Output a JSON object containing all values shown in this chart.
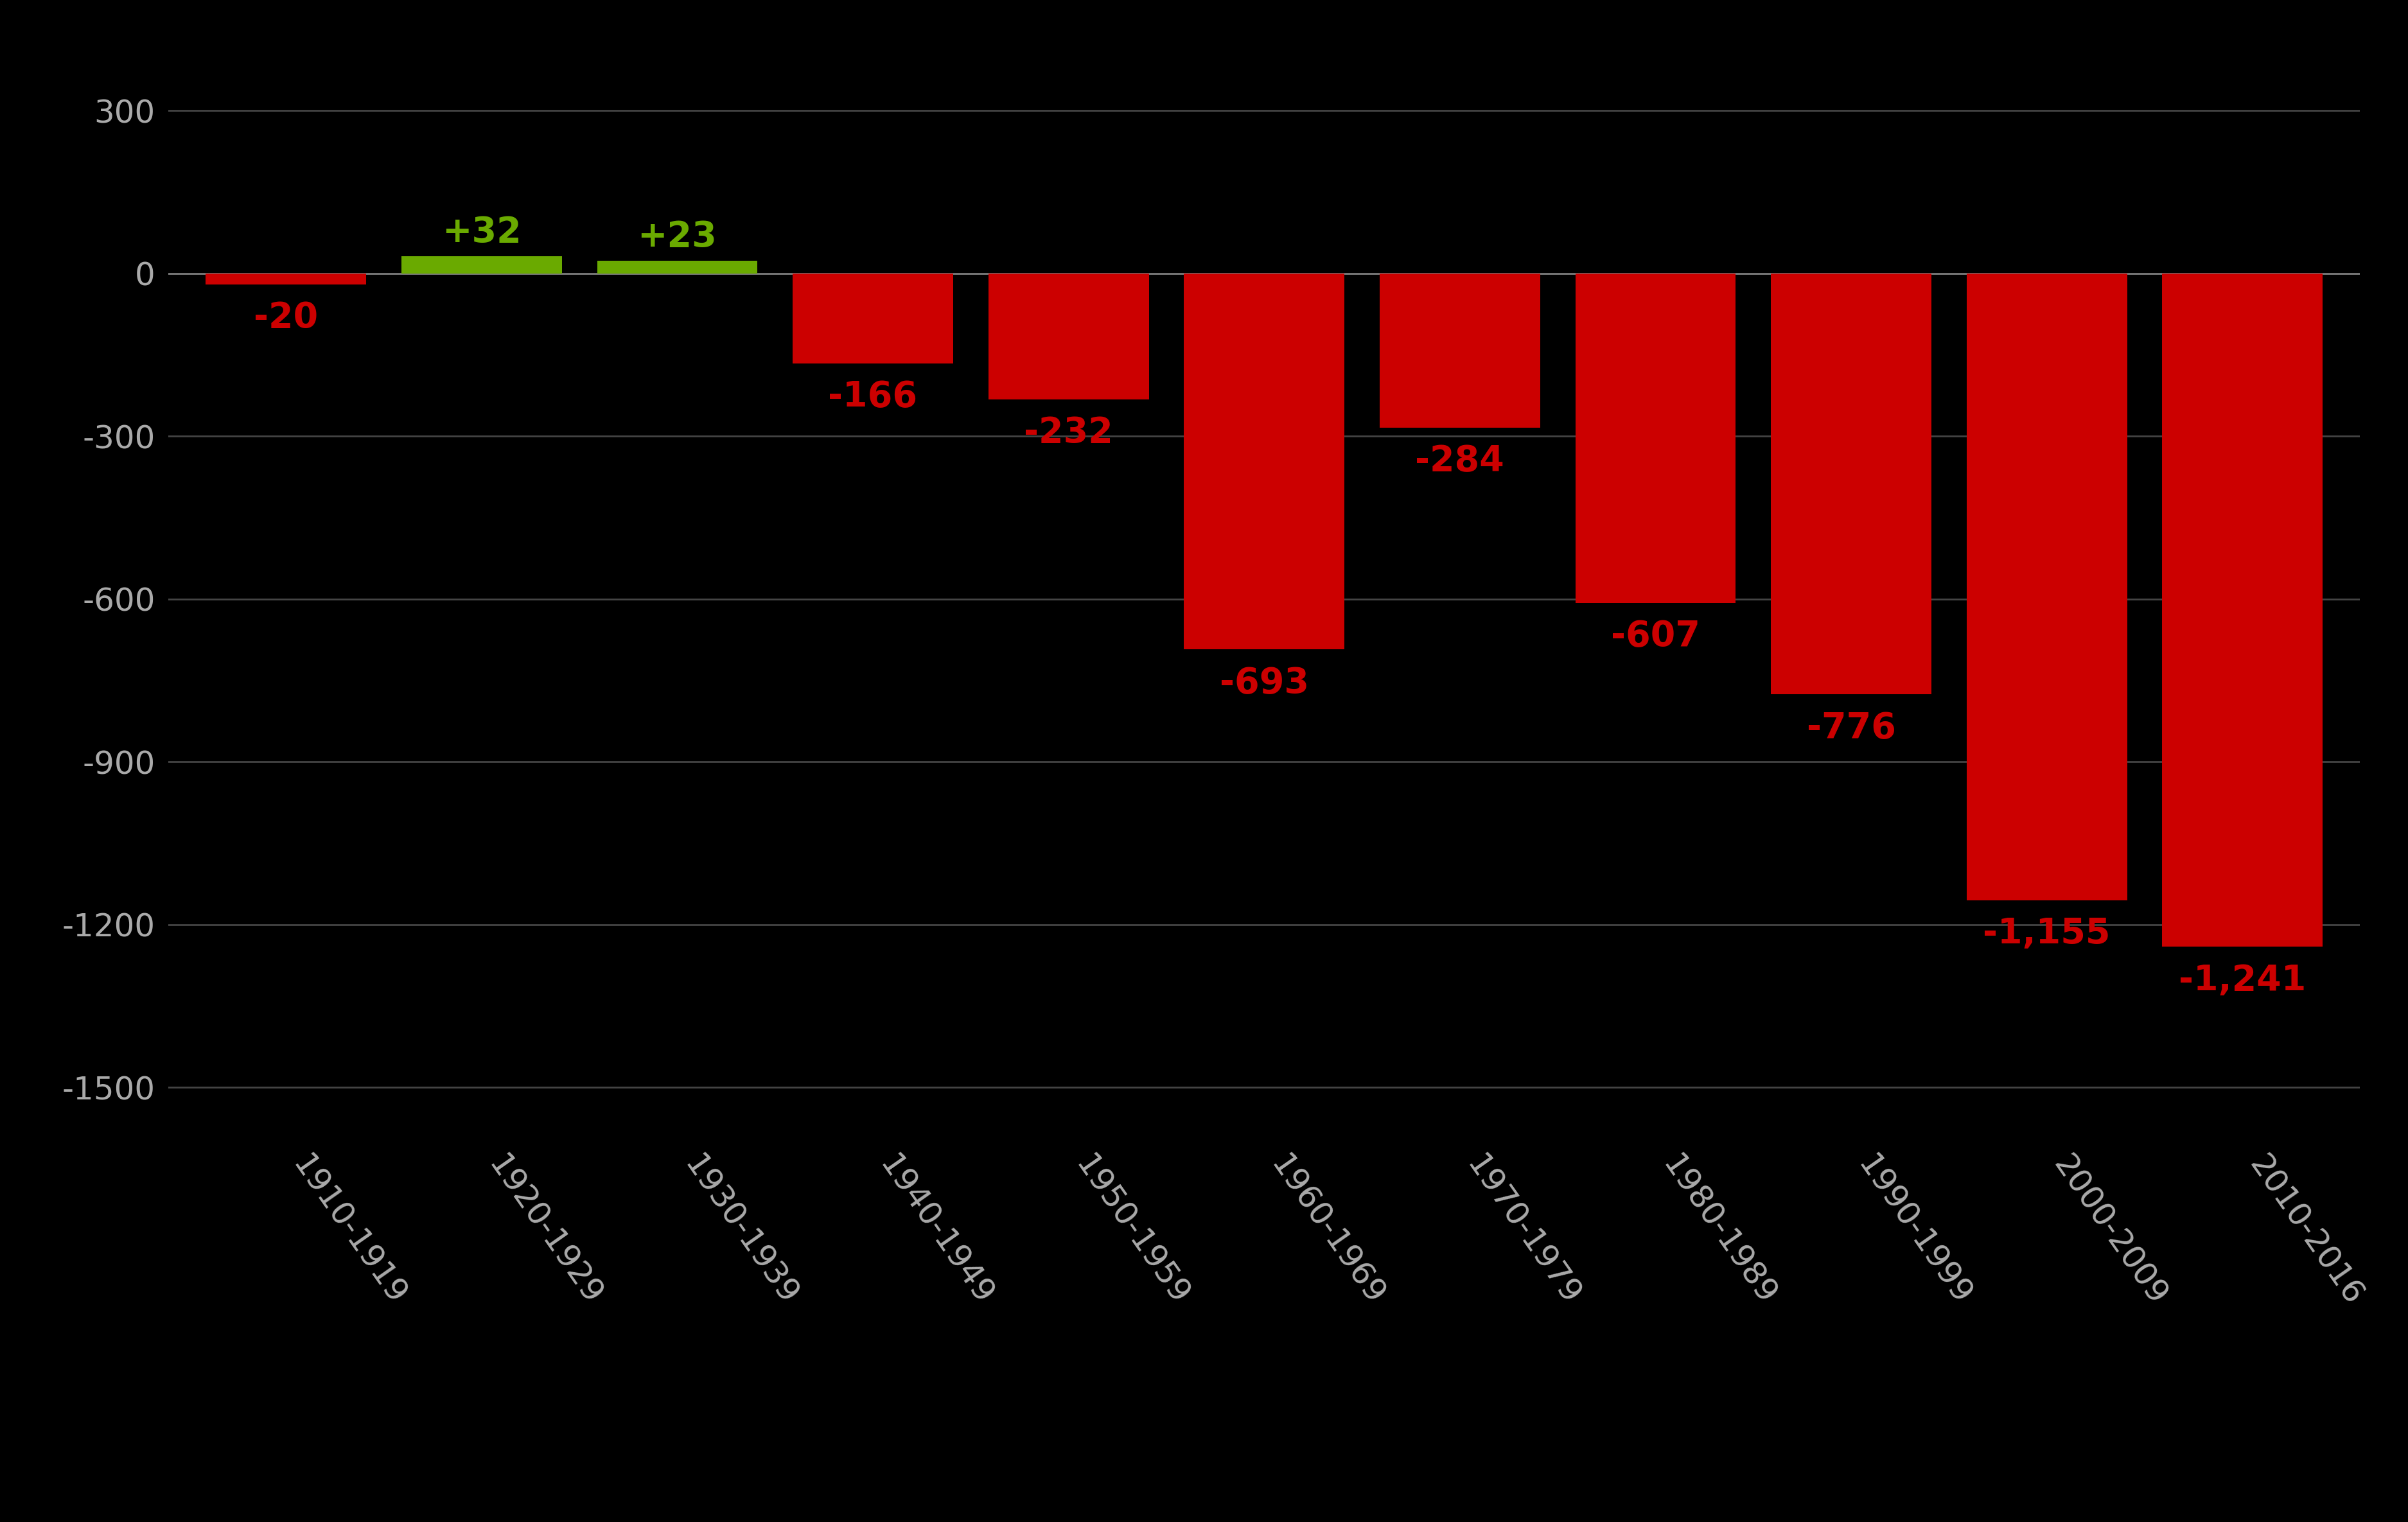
{
  "categories": [
    "1910-1919",
    "1920-1929",
    "1930-1939",
    "1940-1949",
    "1950-1959",
    "1960-1969",
    "1970-1979",
    "1980-1989",
    "1990-1999",
    "2000-2009",
    "2010-2016"
  ],
  "values": [
    -20,
    32,
    23,
    -166,
    -232,
    -693,
    -284,
    -607,
    -776,
    -1155,
    -1241
  ],
  "bar_colors": [
    "#cc0000",
    "#6aaa00",
    "#6aaa00",
    "#cc0000",
    "#cc0000",
    "#cc0000",
    "#cc0000",
    "#cc0000",
    "#cc0000",
    "#cc0000",
    "#cc0000"
  ],
  "label_colors": [
    "#cc0000",
    "#6aaa00",
    "#6aaa00",
    "#cc0000",
    "#cc0000",
    "#cc0000",
    "#cc0000",
    "#cc0000",
    "#cc0000",
    "#cc0000",
    "#cc0000"
  ],
  "labels": [
    "-20",
    "+32",
    "+23",
    "-166",
    "-232",
    "-693",
    "-284",
    "-607",
    "-776",
    "-1,155",
    "-1,241"
  ],
  "background_color": "#000000",
  "grid_color": "#444444",
  "tick_color": "#aaaaaa",
  "ylim": [
    -1600,
    420
  ],
  "yticks": [
    300,
    0,
    -300,
    -600,
    -900,
    -1200,
    -1500
  ],
  "ytick_labels": [
    "300",
    "0",
    "-300",
    "-600",
    "-900",
    "-1200",
    "-1500"
  ],
  "bar_width": 0.82,
  "label_fontsize": 40,
  "tick_fontsize": 36,
  "xtick_rotation": -55
}
